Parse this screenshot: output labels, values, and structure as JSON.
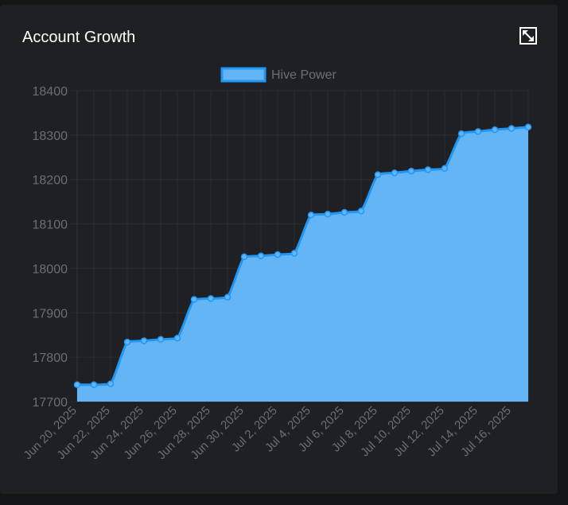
{
  "card": {
    "title": "Account Growth",
    "expand_icon": "expand-icon"
  },
  "colors": {
    "background": "#1e2023",
    "page": "#131517",
    "fill": "#64b5f6",
    "line": "#2196f3",
    "grid": "#2a2d31",
    "tick_text": "#6b6f74",
    "legend_text": "#6b6f74",
    "title_text": "#ffffff"
  },
  "chart_data": {
    "type": "area",
    "title": "",
    "xlabel": "",
    "ylabel": "",
    "ylim": [
      17700,
      18400
    ],
    "yticks": [
      17700,
      17800,
      17900,
      18000,
      18100,
      18200,
      18300,
      18400
    ],
    "legend_position": "top-center",
    "grid": true,
    "x": [
      "Jun 20, 2025",
      "Jun 21, 2025",
      "Jun 22, 2025",
      "Jun 23, 2025",
      "Jun 24, 2025",
      "Jun 25, 2025",
      "Jun 26, 2025",
      "Jun 27, 2025",
      "Jun 28, 2025",
      "Jun 29, 2025",
      "Jun 30, 2025",
      "Jul 1, 2025",
      "Jul 2, 2025",
      "Jul 3, 2025",
      "Jul 4, 2025",
      "Jul 5, 2025",
      "Jul 6, 2025",
      "Jul 7, 2025",
      "Jul 8, 2025",
      "Jul 9, 2025",
      "Jul 10, 2025",
      "Jul 11, 2025",
      "Jul 12, 2025",
      "Jul 13, 2025",
      "Jul 14, 2025",
      "Jul 15, 2025",
      "Jul 16, 2025",
      "Jul 17, 2025"
    ],
    "x_tick_labels": [
      "Jun 20, 2025",
      "Jun 22, 2025",
      "Jun 24, 2025",
      "Jun 26, 2025",
      "Jun 28, 2025",
      "Jun 30, 2025",
      "Jul 2, 2025",
      "Jul 4, 2025",
      "Jul 6, 2025",
      "Jul 8, 2025",
      "Jul 10, 2025",
      "Jul 12, 2025",
      "Jul 14, 2025",
      "Jul 16, 2025"
    ],
    "series": [
      {
        "name": "Hive Power",
        "values": [
          17738,
          17738,
          17740,
          17834,
          17837,
          17840,
          17843,
          17930,
          17932,
          17935,
          18026,
          18028,
          18031,
          18034,
          18120,
          18122,
          18126,
          18129,
          18211,
          18215,
          18219,
          18222,
          18225,
          18303,
          18308,
          18312,
          18315,
          18318
        ]
      }
    ]
  }
}
